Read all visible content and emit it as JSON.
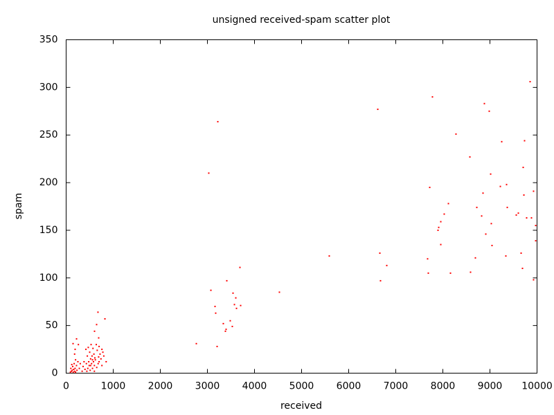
{
  "chart_data": {
    "type": "scatter",
    "title": "unsigned received-spam scatter plot",
    "x_label": "received",
    "y_label": "spam",
    "xlim": [
      0,
      10000
    ],
    "xticks": [
      0,
      1000,
      2000,
      3000,
      4000,
      5000,
      6000,
      7000,
      8000,
      9000,
      10000
    ],
    "ylim": [
      0,
      350
    ],
    "yticks": [
      0,
      50,
      100,
      150,
      200,
      250,
      300,
      350
    ],
    "color": "#ff0000",
    "x": [
      9853,
      7779,
      8882,
      6618,
      8985,
      3221,
      8279,
      9250,
      9735,
      8574,
      9706,
      3029,
      9015,
      7721,
      9221,
      9353,
      9926,
      8853,
      9721,
      8118,
      8721,
      9368,
      9603,
      9559,
      8029,
      8824,
      9779,
      9882,
      7956,
      9029,
      9971,
      7912,
      7897,
      8912,
      9971,
      7956,
      9044,
      9662,
      6662,
      5588,
      9338,
      8691,
      7676,
      6809,
      9691,
      3691,
      7691,
      8162,
      8588,
      6676,
      9926,
      3412,
      3074,
      4529,
      3544,
      3603,
      3574,
      3706,
      3162,
      3618,
      3176,
      3485,
      3338,
      3529,
      3397,
      3382,
      2765,
      3206,
      824,
      676,
      647,
      603,
      691,
      221,
      147,
      191,
      850,
      800,
      780,
      760,
      740,
      720,
      700,
      690,
      680,
      660,
      640,
      620,
      600,
      590,
      580,
      570,
      560,
      550,
      540,
      530,
      520,
      510,
      500,
      490,
      480,
      470,
      460,
      450,
      440,
      430,
      420,
      400,
      380,
      360,
      340,
      300,
      280,
      250,
      230,
      220,
      200,
      190,
      180,
      170,
      160,
      150,
      140,
      130,
      120,
      110,
      100,
      90,
      200,
      260,
      180,
      520,
      560,
      610,
      650,
      700,
      760,
      600
    ],
    "values": [
      306,
      290,
      283,
      277,
      275,
      264,
      251,
      243,
      244,
      227,
      216,
      210,
      209,
      195,
      196,
      198,
      191,
      189,
      187,
      178,
      174,
      174,
      168,
      166,
      167,
      165,
      163,
      163,
      159,
      157,
      155,
      153,
      150,
      146,
      139,
      135,
      134,
      126,
      126,
      123,
      123,
      121,
      120,
      113,
      110,
      111,
      105,
      105,
      106,
      97,
      98,
      97,
      87,
      85,
      84,
      79,
      72,
      71,
      70,
      68,
      63,
      55,
      52,
      49,
      46,
      44,
      31,
      28,
      57,
      64,
      51,
      44,
      37,
      36,
      31,
      25,
      12,
      18,
      22,
      25,
      15,
      20,
      28,
      17,
      10,
      24,
      30,
      14,
      8,
      20,
      12,
      26,
      5,
      18,
      10,
      30,
      15,
      3,
      22,
      8,
      12,
      27,
      5,
      18,
      2,
      10,
      25,
      4,
      12,
      7,
      2,
      10,
      5,
      12,
      3,
      8,
      1,
      5,
      2,
      10,
      4,
      1,
      7,
      3,
      9,
      2,
      5,
      1,
      14,
      30,
      20,
      8,
      14,
      16,
      6,
      12,
      8,
      2
    ]
  }
}
